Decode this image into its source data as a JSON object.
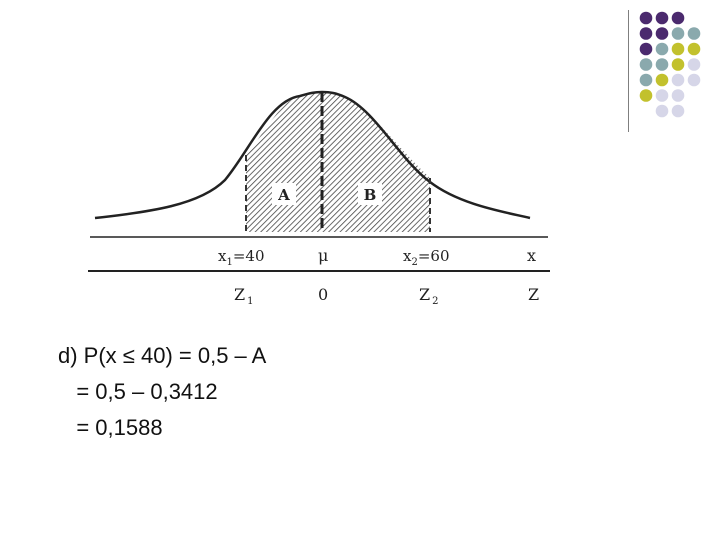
{
  "slide": {
    "dot_colors": {
      "purple": "#4b2a6e",
      "teal": "#8aa9ad",
      "olive": "#c2c12d",
      "lavender": "#d6d6e8"
    },
    "figure": {
      "region_labels": {
        "a": "A",
        "b": "B"
      },
      "axis_x": {
        "x1_main": "x",
        "x1_sub": "1",
        "x1_value": "=40",
        "mu": "μ",
        "x2_main": "x",
        "x2_sub": "2",
        "x2_value": "=60",
        "x_end": "x"
      },
      "axis_z": {
        "z1_main": "Z",
        "z1_sub": "1",
        "zero": "0",
        "z2_main": "Z",
        "z2_sub": "2",
        "z_end": "Z"
      }
    },
    "calculation": {
      "line1": "d) P(x ≤ 40) = 0,5 – A",
      "line2": "   = 0,5 – 0,3412",
      "line3": "   = 0,1588"
    }
  }
}
